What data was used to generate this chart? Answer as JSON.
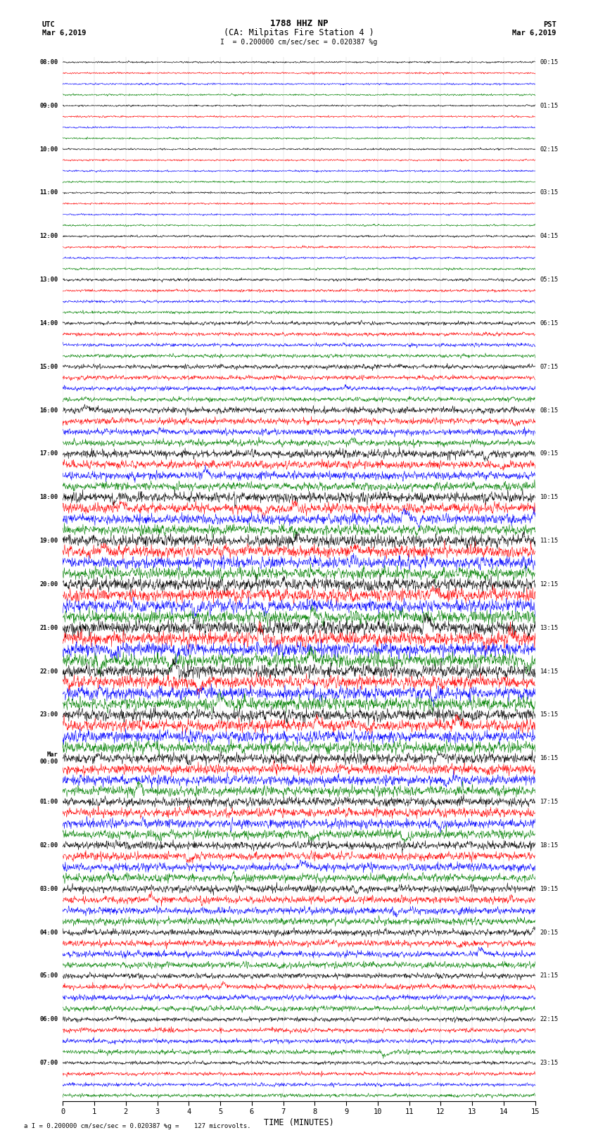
{
  "title_line1": "1788 HHZ NP",
  "title_line2": "(CA: Milpitas Fire Station 4 )",
  "scale_text": "= 0.200000 cm/sec/sec = 0.020387 %g",
  "footer_text": "= 0.200000 cm/sec/sec = 0.020387 %g =    127 microvolts.",
  "utc_label": "UTC",
  "utc_date": "Mar 6,2019",
  "pst_label": "PST",
  "pst_date": "Mar 6,2019",
  "xlabel": "TIME (MINUTES)",
  "xlim": [
    0,
    15
  ],
  "xticks": [
    0,
    1,
    2,
    3,
    4,
    5,
    6,
    7,
    8,
    9,
    10,
    11,
    12,
    13,
    14,
    15
  ],
  "colors": [
    "black",
    "red",
    "blue",
    "green"
  ],
  "num_rows": 96,
  "background_color": "white",
  "left_times_utc": [
    "08:00",
    "",
    "",
    "",
    "09:00",
    "",
    "",
    "",
    "10:00",
    "",
    "",
    "",
    "11:00",
    "",
    "",
    "",
    "12:00",
    "",
    "",
    "",
    "13:00",
    "",
    "",
    "",
    "14:00",
    "",
    "",
    "",
    "15:00",
    "",
    "",
    "",
    "16:00",
    "",
    "",
    "",
    "17:00",
    "",
    "",
    "",
    "18:00",
    "",
    "",
    "",
    "19:00",
    "",
    "",
    "",
    "20:00",
    "",
    "",
    "",
    "21:00",
    "",
    "",
    "",
    "22:00",
    "",
    "",
    "",
    "23:00",
    "",
    "",
    "",
    "Mar\n00:00",
    "",
    "",
    "",
    "01:00",
    "",
    "",
    "",
    "02:00",
    "",
    "",
    "",
    "03:00",
    "",
    "",
    "",
    "04:00",
    "",
    "",
    "",
    "05:00",
    "",
    "",
    "",
    "06:00",
    "",
    "",
    "",
    "07:00",
    "",
    "",
    ""
  ],
  "right_times_pst": [
    "00:15",
    "",
    "",
    "",
    "01:15",
    "",
    "",
    "",
    "02:15",
    "",
    "",
    "",
    "03:15",
    "",
    "",
    "",
    "04:15",
    "",
    "",
    "",
    "05:15",
    "",
    "",
    "",
    "06:15",
    "",
    "",
    "",
    "07:15",
    "",
    "",
    "",
    "08:15",
    "",
    "",
    "",
    "09:15",
    "",
    "",
    "",
    "10:15",
    "",
    "",
    "",
    "11:15",
    "",
    "",
    "",
    "12:15",
    "",
    "",
    "",
    "13:15",
    "",
    "",
    "",
    "14:15",
    "",
    "",
    "",
    "15:15",
    "",
    "",
    "",
    "16:15",
    "",
    "",
    "",
    "17:15",
    "",
    "",
    "",
    "18:15",
    "",
    "",
    "",
    "19:15",
    "",
    "",
    "",
    "20:15",
    "",
    "",
    "",
    "21:15",
    "",
    "",
    "",
    "22:15",
    "",
    "",
    "",
    "23:15",
    "",
    "",
    ""
  ],
  "row_amplitudes": [
    0.1,
    0.1,
    0.1,
    0.1,
    0.1,
    0.1,
    0.1,
    0.1,
    0.1,
    0.1,
    0.1,
    0.1,
    0.1,
    0.1,
    0.1,
    0.1,
    0.12,
    0.12,
    0.12,
    0.12,
    0.15,
    0.15,
    0.15,
    0.15,
    0.2,
    0.2,
    0.2,
    0.2,
    0.25,
    0.25,
    0.25,
    0.25,
    0.35,
    0.35,
    0.35,
    0.35,
    0.45,
    0.45,
    0.45,
    0.45,
    0.55,
    0.55,
    0.55,
    0.55,
    0.65,
    0.65,
    0.65,
    0.65,
    0.7,
    0.7,
    0.7,
    0.7,
    0.75,
    0.75,
    0.75,
    0.75,
    0.7,
    0.7,
    0.7,
    0.7,
    0.65,
    0.65,
    0.65,
    0.65,
    0.55,
    0.55,
    0.55,
    0.55,
    0.5,
    0.5,
    0.5,
    0.5,
    0.45,
    0.45,
    0.45,
    0.45,
    0.4,
    0.4,
    0.4,
    0.4,
    0.35,
    0.35,
    0.35,
    0.35,
    0.3,
    0.3,
    0.3,
    0.3,
    0.25,
    0.25,
    0.25,
    0.25,
    0.2,
    0.2,
    0.2,
    0.2
  ]
}
